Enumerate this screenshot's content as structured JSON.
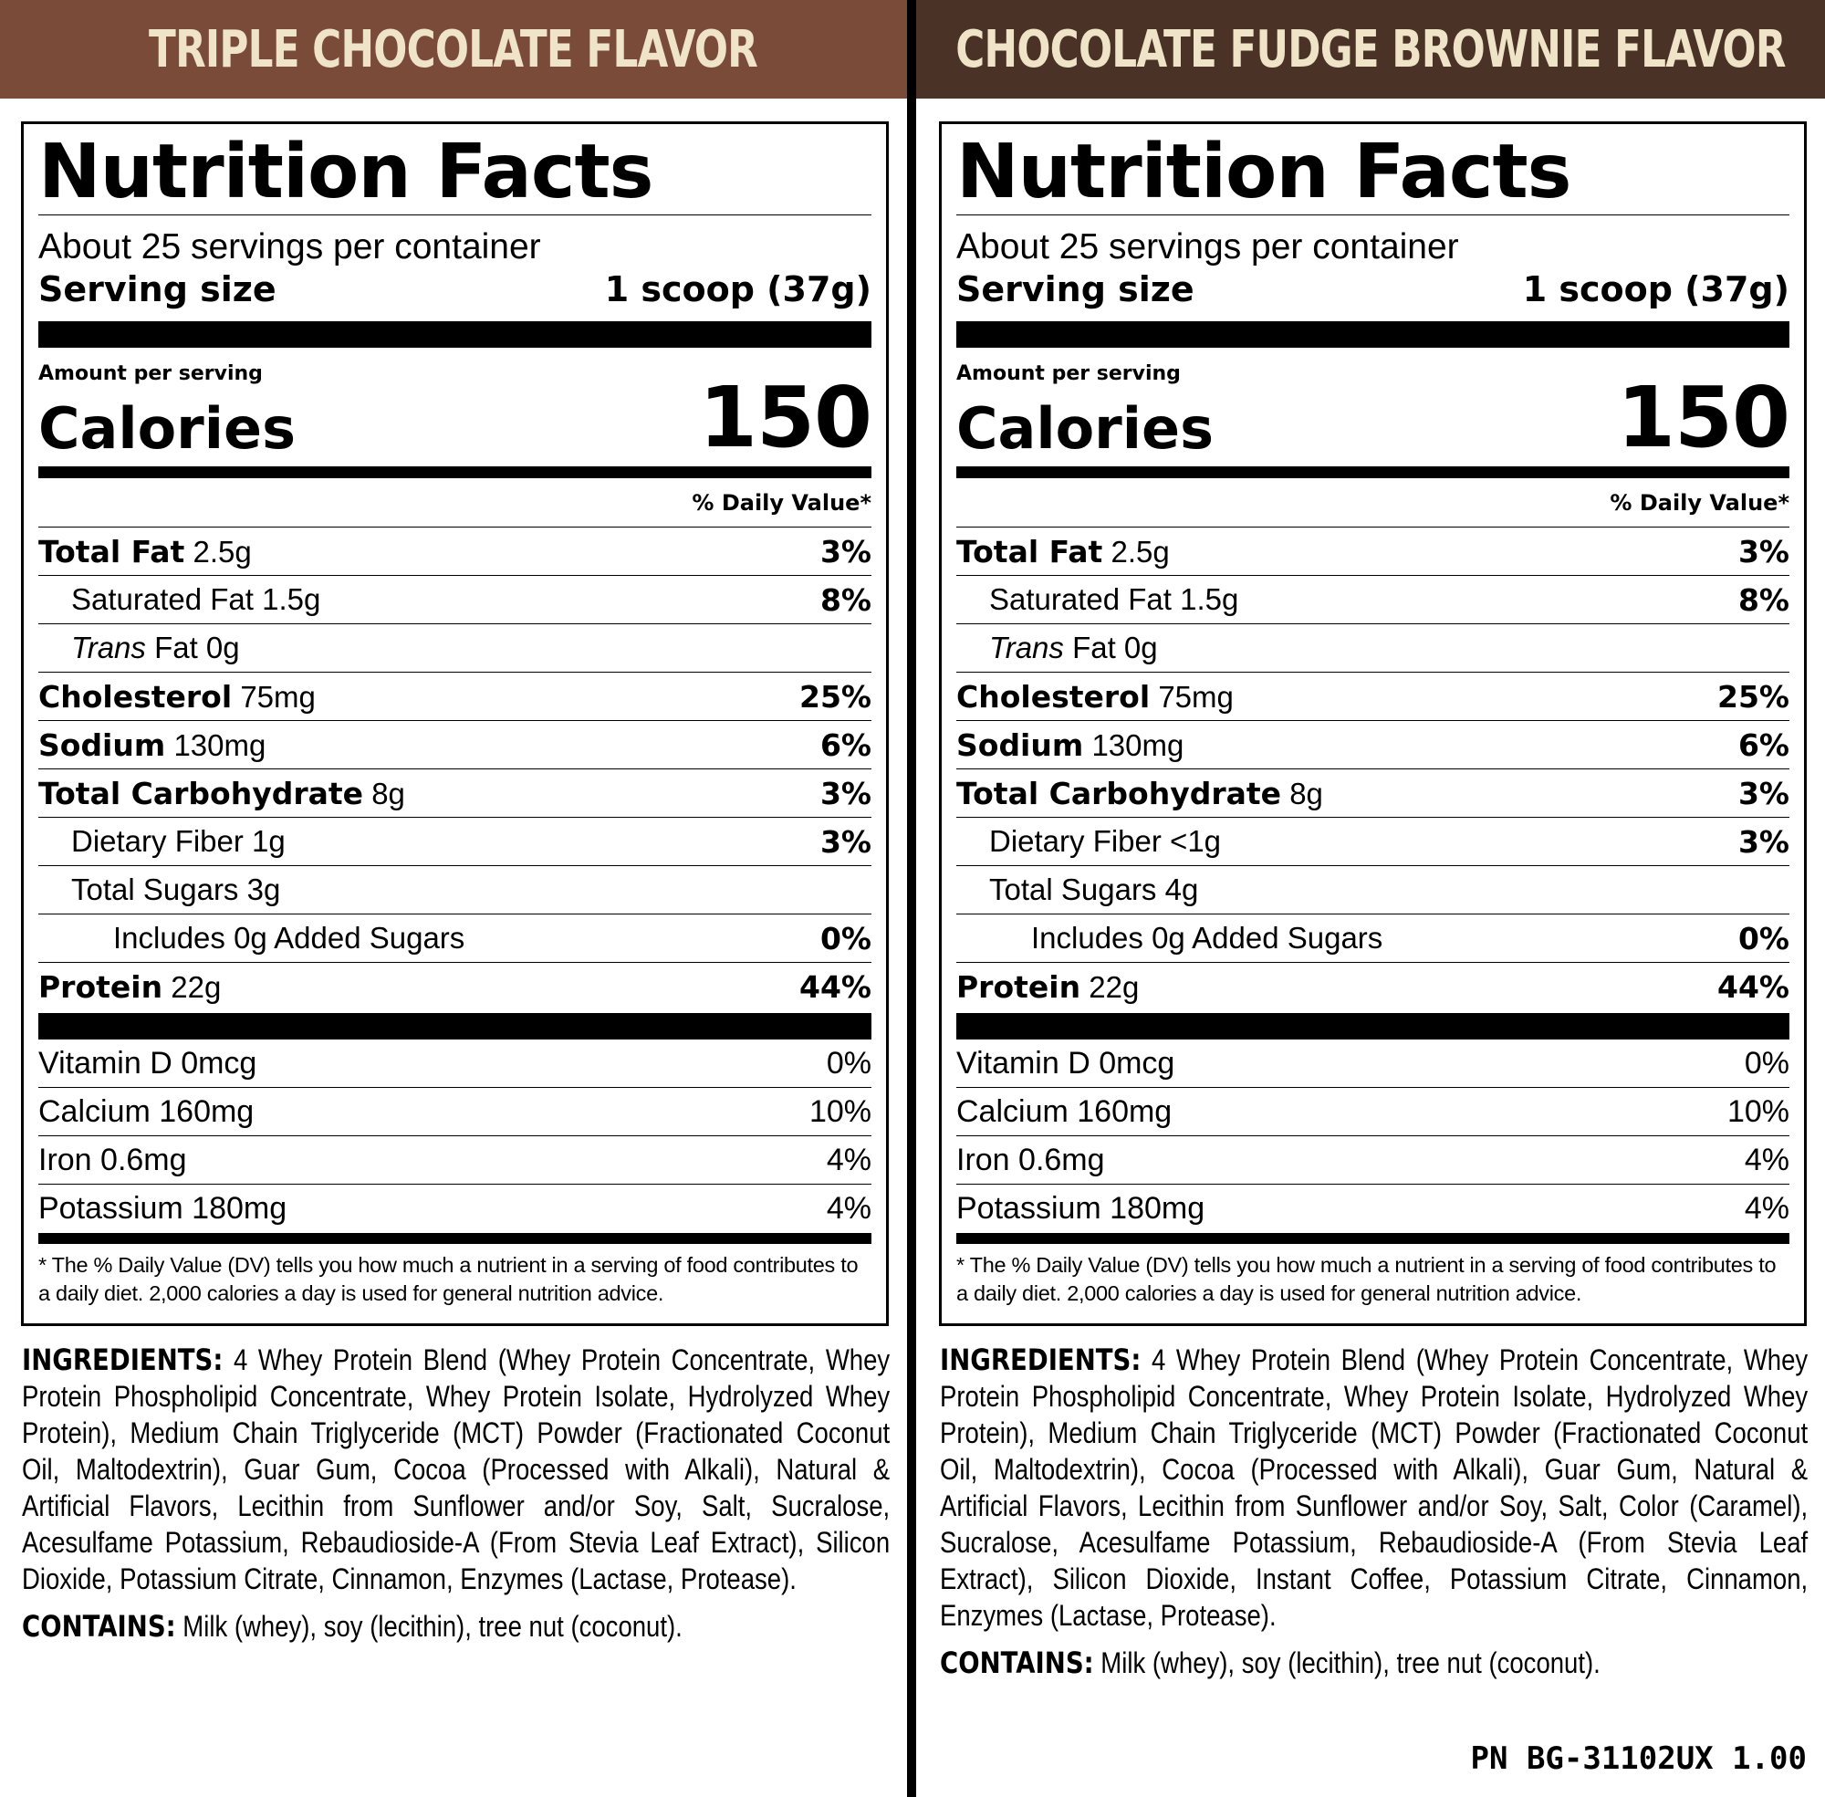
{
  "panels": [
    {
      "flavor": "TRIPLE CHOCOLATE FLAVOR",
      "title": "Nutrition Facts",
      "servings_per_container": "About 25 servings per container",
      "serving_size_label": "Serving size",
      "serving_size_value": "1 scoop (37g)",
      "amount_per_serving": "Amount per serving",
      "calories_label": "Calories",
      "calories_value": "150",
      "dv_header": "% Daily Value*",
      "nutrients": [
        {
          "name": "Total Fat",
          "amount": "2.5g",
          "dv": "3%"
        },
        {
          "name": "Saturated Fat 1.5g",
          "amount": "",
          "dv": "8%"
        },
        {
          "name": "Trans",
          "amount": "Fat 0g",
          "dv": ""
        },
        {
          "name": "Cholesterol",
          "amount": "75mg",
          "dv": "25%"
        },
        {
          "name": "Sodium",
          "amount": "130mg",
          "dv": "6%"
        },
        {
          "name": "Total Carbohydrate",
          "amount": "8g",
          "dv": "3%"
        },
        {
          "name": "Dietary Fiber 1g",
          "amount": "",
          "dv": "3%"
        },
        {
          "name": "Total Sugars 3g",
          "amount": "",
          "dv": ""
        },
        {
          "name": "Includes 0g Added Sugars",
          "amount": "",
          "dv": "0%"
        },
        {
          "name": "Protein",
          "amount": "22g",
          "dv": "44%"
        }
      ],
      "vitamins": [
        {
          "name": "Vitamin D 0mcg",
          "dv": "0%"
        },
        {
          "name": "Calcium 160mg",
          "dv": "10%"
        },
        {
          "name": "Iron 0.6mg",
          "dv": "4%"
        },
        {
          "name": "Potassium 180mg",
          "dv": "4%"
        }
      ],
      "footnote": "* The % Daily Value (DV) tells you how much a nutrient in a serving of food contributes to a daily diet. 2,000 calories a day is used for general nutrition advice.",
      "ingredients_label": "INGREDIENTS:",
      "ingredients_text": "4 Whey Protein Blend (Whey Protein Concentrate, Whey Protein Phospholipid Concentrate, Whey Protein Isolate, Hydrolyzed Whey Protein), Medium Chain Triglyceride (MCT) Powder (Fractionated Coconut Oil, Maltodextrin), Guar Gum, Cocoa (Processed with Alkali), Natural & Artificial Flavors, Lecithin from Sunflower and/or Soy, Salt, Sucralose, Acesulfame Potassium, Rebaudioside-A (From Stevia Leaf Extract), Silicon Dioxide, Potassium Citrate, Cinnamon, Enzymes (Lactase, Protease).",
      "contains_label": "CONTAINS:",
      "contains_text": "Milk (whey), soy (lecithin), tree nut (coconut)."
    },
    {
      "flavor": "CHOCOLATE FUDGE BROWNIE FLAVOR",
      "title": "Nutrition Facts",
      "servings_per_container": "About 25 servings per container",
      "serving_size_label": "Serving size",
      "serving_size_value": "1 scoop (37g)",
      "amount_per_serving": "Amount per serving",
      "calories_label": "Calories",
      "calories_value": "150",
      "dv_header": "% Daily Value*",
      "nutrients": [
        {
          "name": "Total Fat",
          "amount": "2.5g",
          "dv": "3%"
        },
        {
          "name": "Saturated Fat 1.5g",
          "amount": "",
          "dv": "8%"
        },
        {
          "name": "Trans",
          "amount": "Fat 0g",
          "dv": ""
        },
        {
          "name": "Cholesterol",
          "amount": "75mg",
          "dv": "25%"
        },
        {
          "name": "Sodium",
          "amount": "130mg",
          "dv": "6%"
        },
        {
          "name": "Total Carbohydrate",
          "amount": "8g",
          "dv": "3%"
        },
        {
          "name": "Dietary Fiber <1g",
          "amount": "",
          "dv": "3%"
        },
        {
          "name": "Total Sugars 4g",
          "amount": "",
          "dv": ""
        },
        {
          "name": "Includes 0g Added Sugars",
          "amount": "",
          "dv": "0%"
        },
        {
          "name": "Protein",
          "amount": "22g",
          "dv": "44%"
        }
      ],
      "vitamins": [
        {
          "name": "Vitamin D 0mcg",
          "dv": "0%"
        },
        {
          "name": "Calcium 160mg",
          "dv": "10%"
        },
        {
          "name": "Iron 0.6mg",
          "dv": "4%"
        },
        {
          "name": "Potassium 180mg",
          "dv": "4%"
        }
      ],
      "footnote": "* The % Daily Value (DV) tells you how much a nutrient in a serving of food contributes to a daily diet. 2,000 calories a day is used for general nutrition advice.",
      "ingredients_label": "INGREDIENTS:",
      "ingredients_text": "4 Whey Protein Blend (Whey Protein Concentrate, Whey Protein Phospholipid Concentrate, Whey Protein Isolate, Hydrolyzed Whey Protein), Medium Chain Triglyceride (MCT) Powder (Fractionated Coconut Oil, Maltodextrin), Cocoa (Processed with Alkali), Guar Gum, Natural & Artificial Flavors, Lecithin from Sunflower and/or Soy, Salt, Color (Caramel), Sucralose, Acesulfame Potassium, Rebaudioside-A (From Stevia Leaf Extract), Silicon Dioxide, Instant Coffee, Potassium Citrate, Cinnamon, Enzymes (Lactase, Protease).",
      "contains_label": "CONTAINS:",
      "contains_text": "Milk (whey), soy (lecithin), tree nut (coconut)."
    }
  ],
  "part_number": "PN BG-31102UX 1.00",
  "colors": {
    "left_banner": "#7b4b39",
    "right_banner": "#4a3226",
    "banner_text": "#efe3c8"
  }
}
